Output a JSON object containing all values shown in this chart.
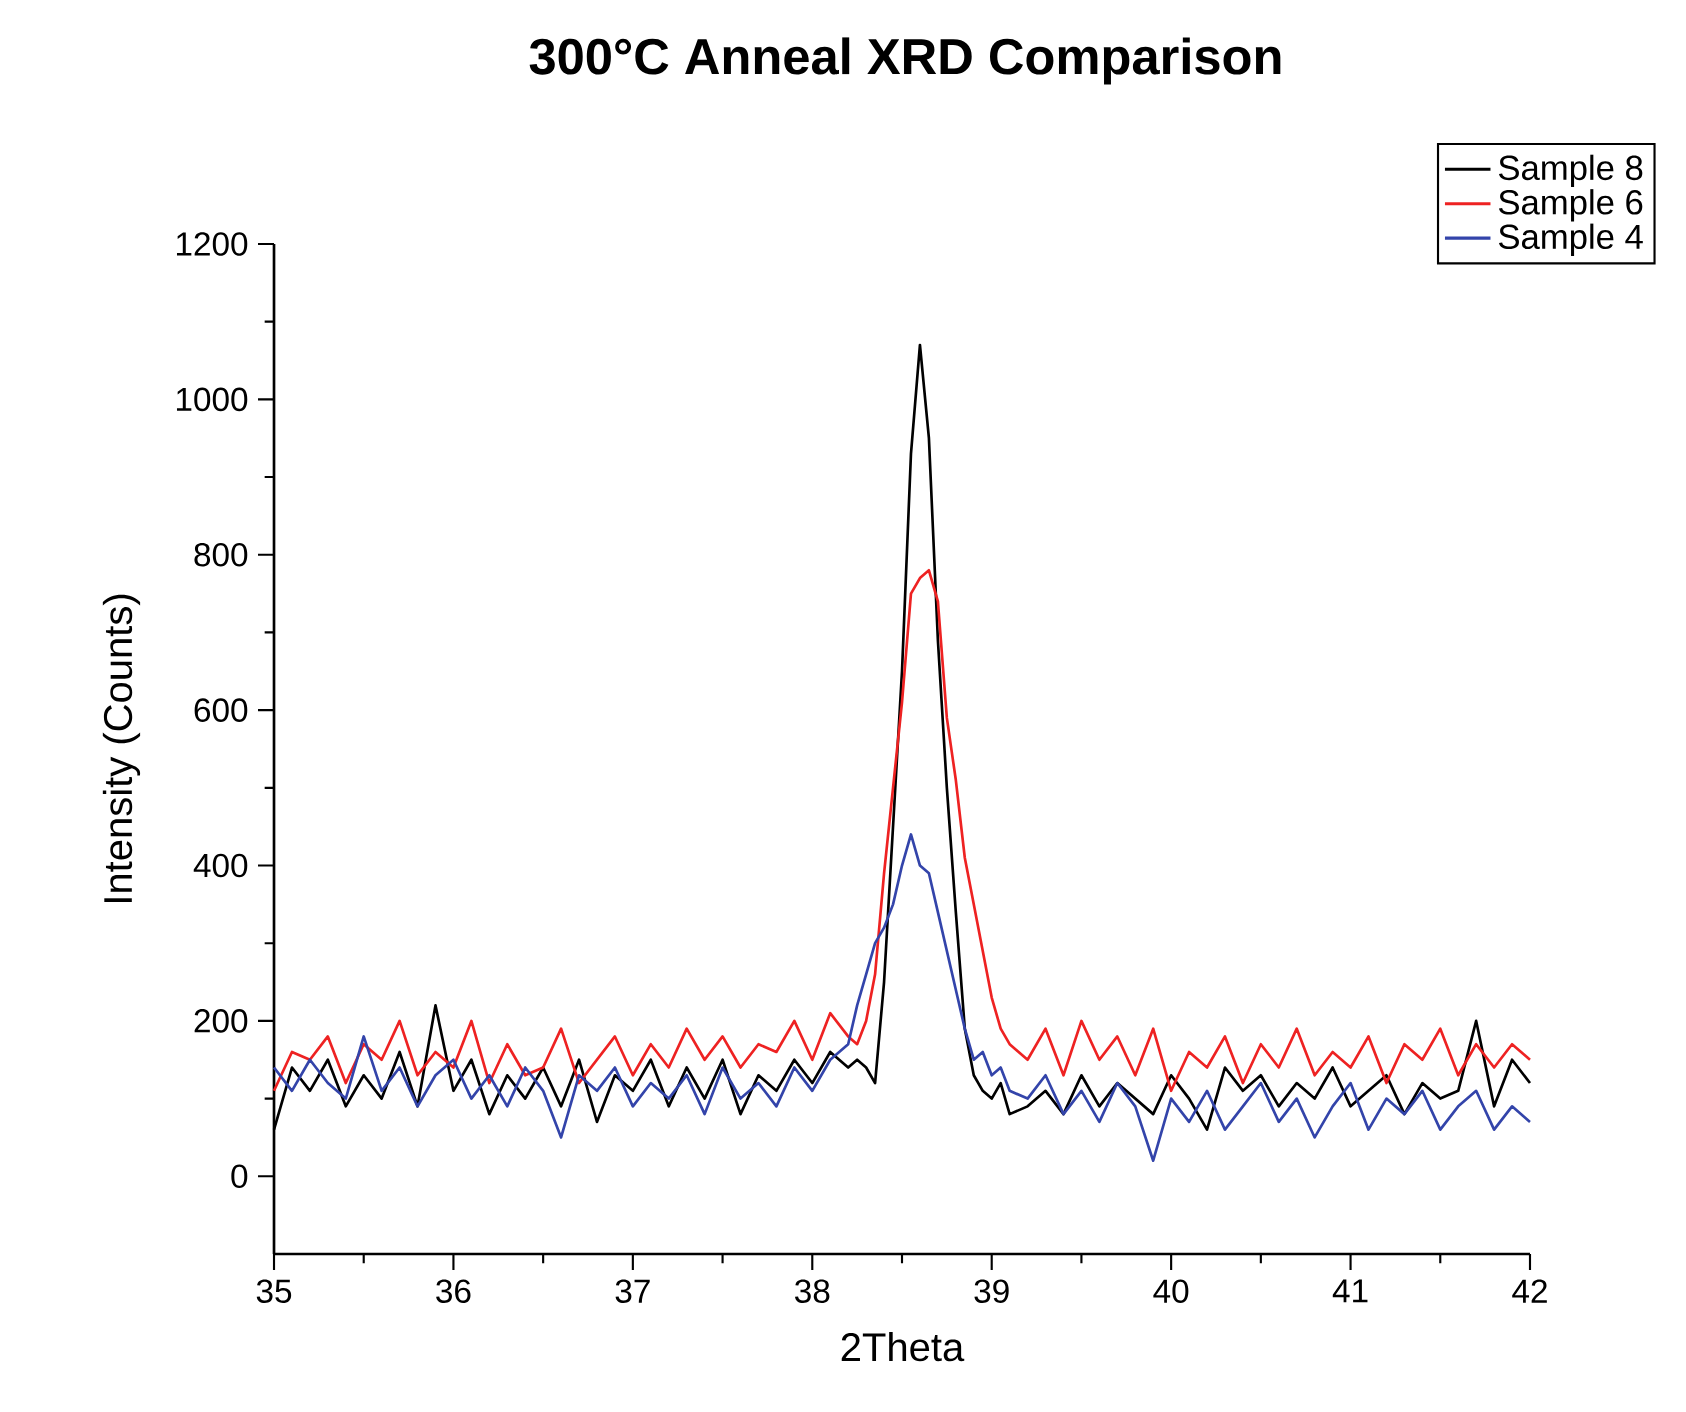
{
  "chart_data": {
    "type": "line",
    "title": "300°C Anneal XRD Comparison",
    "xlabel": "2Theta",
    "ylabel": "Intensity (Counts)",
    "x": [
      35.0,
      35.1,
      35.2,
      35.3,
      35.4,
      35.5,
      35.6,
      35.7,
      35.8,
      35.9,
      36.0,
      36.1,
      36.2,
      36.3,
      36.4,
      36.5,
      36.6,
      36.7,
      36.8,
      36.9,
      37.0,
      37.1,
      37.2,
      37.3,
      37.4,
      37.5,
      37.6,
      37.7,
      37.8,
      37.9,
      38.0,
      38.1,
      38.2,
      38.25,
      38.3,
      38.35,
      38.4,
      38.45,
      38.5,
      38.55,
      38.6,
      38.65,
      38.7,
      38.75,
      38.8,
      38.85,
      38.9,
      38.95,
      39.0,
      39.05,
      39.1,
      39.2,
      39.3,
      39.4,
      39.5,
      39.6,
      39.7,
      39.8,
      39.9,
      40.0,
      40.1,
      40.2,
      40.3,
      40.4,
      40.5,
      40.6,
      40.7,
      40.8,
      40.9,
      41.0,
      41.1,
      41.2,
      41.3,
      41.4,
      41.5,
      41.6,
      41.7,
      41.8,
      41.9,
      42.0
    ],
    "series": [
      {
        "name": "Sample 8",
        "color": "#000000",
        "values": [
          60,
          140,
          110,
          150,
          90,
          130,
          100,
          160,
          90,
          220,
          110,
          150,
          80,
          130,
          100,
          140,
          90,
          150,
          70,
          130,
          110,
          150,
          90,
          140,
          100,
          150,
          80,
          130,
          110,
          150,
          120,
          160,
          140,
          150,
          140,
          120,
          250,
          450,
          650,
          930,
          1070,
          950,
          690,
          500,
          340,
          190,
          130,
          110,
          100,
          120,
          80,
          90,
          110,
          80,
          130,
          90,
          120,
          100,
          80,
          130,
          100,
          60,
          140,
          110,
          130,
          90,
          120,
          100,
          140,
          90,
          110,
          130,
          80,
          120,
          100,
          110,
          200,
          90,
          150,
          120
        ]
      },
      {
        "name": "Sample 6",
        "color": "#ee2222",
        "values": [
          110,
          160,
          150,
          180,
          120,
          170,
          150,
          200,
          130,
          160,
          140,
          200,
          120,
          170,
          130,
          140,
          190,
          120,
          150,
          180,
          130,
          170,
          140,
          190,
          150,
          180,
          140,
          170,
          160,
          200,
          150,
          210,
          180,
          170,
          200,
          260,
          390,
          500,
          610,
          750,
          770,
          780,
          740,
          590,
          510,
          410,
          350,
          290,
          230,
          190,
          170,
          150,
          190,
          130,
          200,
          150,
          180,
          130,
          190,
          110,
          160,
          140,
          180,
          120,
          170,
          140,
          190,
          130,
          160,
          140,
          180,
          120,
          170,
          150,
          190,
          130,
          170,
          140,
          170,
          150
        ]
      },
      {
        "name": "Sample 4",
        "color": "#3344aa",
        "values": [
          140,
          110,
          150,
          120,
          100,
          180,
          110,
          140,
          90,
          130,
          150,
          100,
          130,
          90,
          140,
          110,
          50,
          130,
          110,
          140,
          90,
          120,
          100,
          130,
          80,
          140,
          100,
          120,
          90,
          140,
          110,
          150,
          170,
          220,
          260,
          300,
          320,
          350,
          400,
          440,
          400,
          390,
          340,
          290,
          240,
          190,
          150,
          160,
          130,
          140,
          110,
          100,
          130,
          80,
          110,
          70,
          120,
          90,
          20,
          100,
          70,
          110,
          60,
          90,
          120,
          70,
          100,
          50,
          90,
          120,
          60,
          100,
          80,
          110,
          60,
          90,
          110,
          60,
          90,
          70
        ]
      }
    ],
    "xlim": [
      35,
      42
    ],
    "ylim": [
      -100,
      1200
    ],
    "xticks": [
      35,
      36,
      37,
      38,
      39,
      40,
      41,
      42
    ],
    "yticks": [
      0,
      200,
      400,
      600,
      800,
      1000,
      1200
    ],
    "legend": "top right",
    "grid": false,
    "marker": "none",
    "line_style": "solid"
  }
}
